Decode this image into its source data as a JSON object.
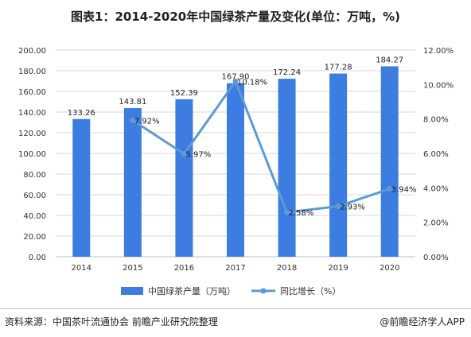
{
  "title": "图表1：2014-2020年中国绿茶产量及变化(单位：万吨，%)",
  "footer": {
    "source": "资料来源：中国茶叶流通协会 前瞻产业研究院整理",
    "brand": "@前瞻经济学人APP"
  },
  "colors": {
    "bar": "#3d7ce0",
    "line": "#5b9bd5",
    "grid": "#d9d9d9",
    "axis": "#bfbfbf"
  },
  "chart_data": {
    "type": "bar",
    "categories": [
      "2014",
      "2015",
      "2016",
      "2017",
      "2018",
      "2019",
      "2020"
    ],
    "series": [
      {
        "name": "中国绿茶产量（万吨）",
        "type": "bar",
        "axis": "left",
        "values": [
          133.26,
          143.81,
          152.39,
          167.9,
          172.24,
          177.28,
          184.27
        ],
        "labels": [
          "133.26",
          "143.81",
          "152.39",
          "167.90",
          "172.24",
          "177.28",
          "184.27"
        ]
      },
      {
        "name": "同比增长（%）",
        "type": "line",
        "axis": "right",
        "values": [
          null,
          7.92,
          5.97,
          10.18,
          2.58,
          2.93,
          3.94
        ],
        "labels": [
          null,
          "7.92%",
          "5.97%",
          "10.18%",
          "2.58%",
          "2.93%",
          "3.94%"
        ]
      }
    ],
    "y_left": {
      "range": [
        0,
        200
      ],
      "ticks": [
        "0.00",
        "20.00",
        "40.00",
        "60.00",
        "80.00",
        "100.00",
        "120.00",
        "140.00",
        "160.00",
        "180.00",
        "200.00"
      ]
    },
    "y_right": {
      "range": [
        0,
        12
      ],
      "ticks": [
        "0.00%",
        "2.00%",
        "4.00%",
        "6.00%",
        "8.00%",
        "10.00%",
        "12.00%"
      ]
    },
    "grid": true,
    "legend_position": "bottom"
  }
}
